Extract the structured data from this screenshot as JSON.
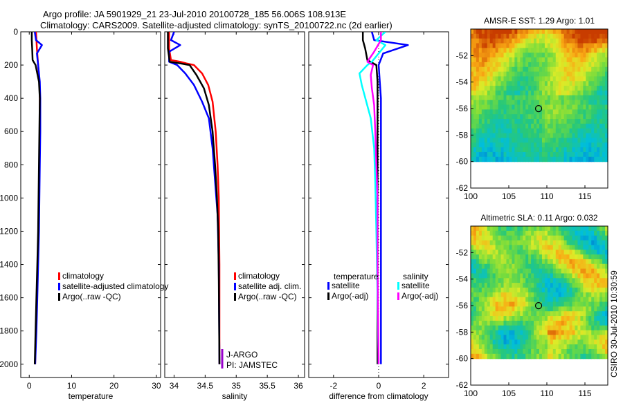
{
  "header": {
    "line1": "Argo profile: JA 5901929_21 23-Jul-2010 20100728_185 56.006S 108.913E",
    "line2": "Climatology: CARS2009. Satellite-adjusted climatology: synTS_20100722.nc (2d earlier)"
  },
  "colors": {
    "climatology": "#ff0000",
    "satellite": "#0000ff",
    "argo": "#000000",
    "sal_satellite": "#00ffff",
    "sal_argo": "#ff00ff"
  },
  "chart_data": [
    {
      "id": "temperature",
      "type": "line",
      "xlabel": "temperature",
      "ylabel": "",
      "xlim": [
        -2,
        31
      ],
      "ylim": [
        2080,
        0
      ],
      "xticks": [
        0,
        10,
        20,
        30
      ],
      "yticks": [
        0,
        200,
        400,
        600,
        800,
        1000,
        1200,
        1400,
        1600,
        1800,
        2000
      ],
      "series": [
        {
          "name": "climatology",
          "color": "#ff0000",
          "points": [
            [
              1.6,
              0
            ],
            [
              1.8,
              100
            ],
            [
              2.1,
              200
            ],
            [
              2.4,
              300
            ],
            [
              2.5,
              400
            ],
            [
              2.5,
              600
            ],
            [
              2.4,
              800
            ],
            [
              2.3,
              1000
            ],
            [
              2.2,
              1200
            ],
            [
              2.0,
              1400
            ],
            [
              1.8,
              1600
            ],
            [
              1.6,
              1800
            ],
            [
              1.4,
              2000
            ]
          ]
        },
        {
          "name": "satellite-adjusted climatology",
          "color": "#0000ff",
          "points": [
            [
              1.3,
              0
            ],
            [
              1.6,
              50
            ],
            [
              3.0,
              80
            ],
            [
              1.8,
              130
            ],
            [
              2.1,
              200
            ],
            [
              2.5,
              300
            ],
            [
              2.6,
              400
            ],
            [
              2.6,
              600
            ],
            [
              2.5,
              800
            ],
            [
              2.4,
              1000
            ],
            [
              2.3,
              1200
            ],
            [
              2.1,
              1400
            ],
            [
              1.9,
              1600
            ],
            [
              1.7,
              1800
            ],
            [
              1.4,
              2000
            ]
          ]
        },
        {
          "name": "Argo(..raw -QC)",
          "color": "#000000",
          "points": [
            [
              0.6,
              0
            ],
            [
              0.6,
              50
            ],
            [
              0.7,
              100
            ],
            [
              0.8,
              170
            ],
            [
              1.5,
              200
            ],
            [
              2.3,
              300
            ],
            [
              2.5,
              400
            ],
            [
              2.4,
              600
            ],
            [
              2.3,
              800
            ],
            [
              2.2,
              1000
            ],
            [
              2.1,
              1200
            ],
            [
              1.9,
              1400
            ],
            [
              1.7,
              1600
            ],
            [
              1.5,
              1800
            ],
            [
              1.3,
              2000
            ]
          ]
        }
      ],
      "legend": [
        "climatology",
        "satellite-adjusted climatology",
        "Argo(..raw -QC)"
      ]
    },
    {
      "id": "salinity",
      "type": "line",
      "xlabel": "salinity",
      "ylabel": "",
      "xlim": [
        33.85,
        36.1
      ],
      "ylim": [
        2080,
        0
      ],
      "xticks": [
        34,
        34.5,
        35,
        35.5,
        36
      ],
      "xtick_labels": [
        "34",
        "34.5",
        "35",
        "35.5",
        "36"
      ],
      "series": [
        {
          "name": "climatology",
          "color": "#ff0000",
          "points": [
            [
              33.92,
              0
            ],
            [
              33.92,
              100
            ],
            [
              33.95,
              170
            ],
            [
              34.1,
              180
            ],
            [
              34.2,
              190
            ],
            [
              34.32,
              200
            ],
            [
              34.45,
              250
            ],
            [
              34.55,
              320
            ],
            [
              34.62,
              420
            ],
            [
              34.67,
              600
            ],
            [
              34.7,
              800
            ],
            [
              34.72,
              1000
            ],
            [
              34.73,
              1400
            ],
            [
              34.73,
              2000
            ]
          ]
        },
        {
          "name": "satellite adj. clim.",
          "color": "#0000ff",
          "points": [
            [
              34.0,
              0
            ],
            [
              33.95,
              50
            ],
            [
              34.1,
              80
            ],
            [
              33.92,
              120
            ],
            [
              33.92,
              180
            ],
            [
              34.05,
              200
            ],
            [
              34.18,
              250
            ],
            [
              34.32,
              320
            ],
            [
              34.45,
              420
            ],
            [
              34.56,
              520
            ],
            [
              34.62,
              700
            ],
            [
              34.66,
              900
            ],
            [
              34.7,
              1100
            ],
            [
              34.72,
              1400
            ],
            [
              34.73,
              2000
            ]
          ]
        },
        {
          "name": "Argo(..raw -QC)",
          "color": "#000000",
          "points": [
            [
              33.9,
              0
            ],
            [
              33.9,
              100
            ],
            [
              33.93,
              180
            ],
            [
              34.1,
              190
            ],
            [
              34.25,
              200
            ],
            [
              34.36,
              260
            ],
            [
              34.48,
              340
            ],
            [
              34.56,
              440
            ],
            [
              34.62,
              600
            ],
            [
              34.66,
              800
            ],
            [
              34.69,
              1000
            ],
            [
              34.71,
              1200
            ],
            [
              34.72,
              1500
            ],
            [
              34.73,
              2000
            ]
          ]
        }
      ],
      "legend": [
        "climatology",
        "satellite adj. clim.",
        "Argo(..raw -QC)"
      ],
      "annotations": [
        "J-ARGO",
        "PI: JAMSTEC"
      ]
    },
    {
      "id": "difference",
      "type": "line",
      "xlabel": "difference from climatology",
      "ylabel": "",
      "xlim": [
        -3.1,
        3.1
      ],
      "ylim": [
        2080,
        0
      ],
      "xticks": [
        -2,
        0,
        2
      ],
      "series": [
        {
          "name": "temperature satellite",
          "color": "#0000ff",
          "points": [
            [
              -0.3,
              0
            ],
            [
              -0.2,
              50
            ],
            [
              1.3,
              80
            ],
            [
              0.2,
              130
            ],
            [
              0,
              200
            ],
            [
              0.1,
              400
            ],
            [
              0.1,
              800
            ],
            [
              0.1,
              1200
            ],
            [
              0.1,
              1600
            ],
            [
              0.1,
              2000
            ]
          ]
        },
        {
          "name": "temperature Argo(-adj)",
          "color": "#000000",
          "points": [
            [
              -0.7,
              0
            ],
            [
              -0.7,
              50
            ],
            [
              -0.6,
              100
            ],
            [
              -0.5,
              170
            ],
            [
              -0.1,
              200
            ],
            [
              -0.05,
              300
            ],
            [
              -0.05,
              600
            ],
            [
              -0.05,
              1000
            ],
            [
              -0.05,
              1400
            ],
            [
              -0.05,
              2000
            ]
          ]
        },
        {
          "name": "salinity satellite",
          "color": "#00ffff",
          "points": [
            [
              0.3,
              0
            ],
            [
              -0.1,
              50
            ],
            [
              0.3,
              80
            ],
            [
              -0.3,
              180
            ],
            [
              -0.5,
              200
            ],
            [
              -0.85,
              250
            ],
            [
              -0.75,
              320
            ],
            [
              -0.55,
              420
            ],
            [
              -0.35,
              520
            ],
            [
              -0.2,
              700
            ],
            [
              -0.15,
              900
            ],
            [
              -0.1,
              1200
            ],
            [
              -0.05,
              1600
            ],
            [
              0,
              2000
            ]
          ]
        },
        {
          "name": "salinity Argo(-adj)",
          "color": "#ff00ff",
          "points": [
            [
              0.1,
              0
            ],
            [
              0.1,
              50
            ],
            [
              -0.2,
              120
            ],
            [
              -0.5,
              180
            ],
            [
              -0.25,
              200
            ],
            [
              -0.35,
              260
            ],
            [
              -0.3,
              340
            ],
            [
              -0.2,
              440
            ],
            [
              -0.15,
              600
            ],
            [
              -0.1,
              800
            ],
            [
              -0.05,
              1000
            ],
            [
              -0.05,
              1400
            ],
            [
              0,
              2000
            ]
          ]
        }
      ],
      "legend_headers": [
        "temperature",
        "salinity"
      ],
      "legend": [
        "satellite",
        "Argo(-adj)",
        "satellite",
        "Argo(-adj)"
      ]
    },
    {
      "id": "sst_map",
      "type": "heatmap",
      "title": "AMSR-E SST: 1.29 Argo: 1.01",
      "xlim": [
        100,
        118
      ],
      "ylim": [
        -62,
        -50
      ],
      "xticks": [
        100,
        105,
        110,
        115
      ],
      "yticks": [
        -52,
        -54,
        -56,
        -58,
        -60,
        -62
      ],
      "data_extent_lat": [
        -60,
        -50
      ],
      "marker": [
        108.913,
        -56.006
      ]
    },
    {
      "id": "sla_map",
      "type": "heatmap",
      "title": "Altimetric SLA: 0.11 Argo: 0.032",
      "xlim": [
        100,
        118
      ],
      "ylim": [
        -62,
        -50
      ],
      "xticks": [
        100,
        105,
        110,
        115
      ],
      "yticks": [
        -52,
        -54,
        -56,
        -58,
        -60,
        -62
      ],
      "data_extent_lat": [
        -60,
        -50
      ],
      "marker": [
        108.913,
        -56.006
      ]
    }
  ],
  "footer": {
    "credit": "CSIRO 30-Jul-2010 10:30:59"
  }
}
